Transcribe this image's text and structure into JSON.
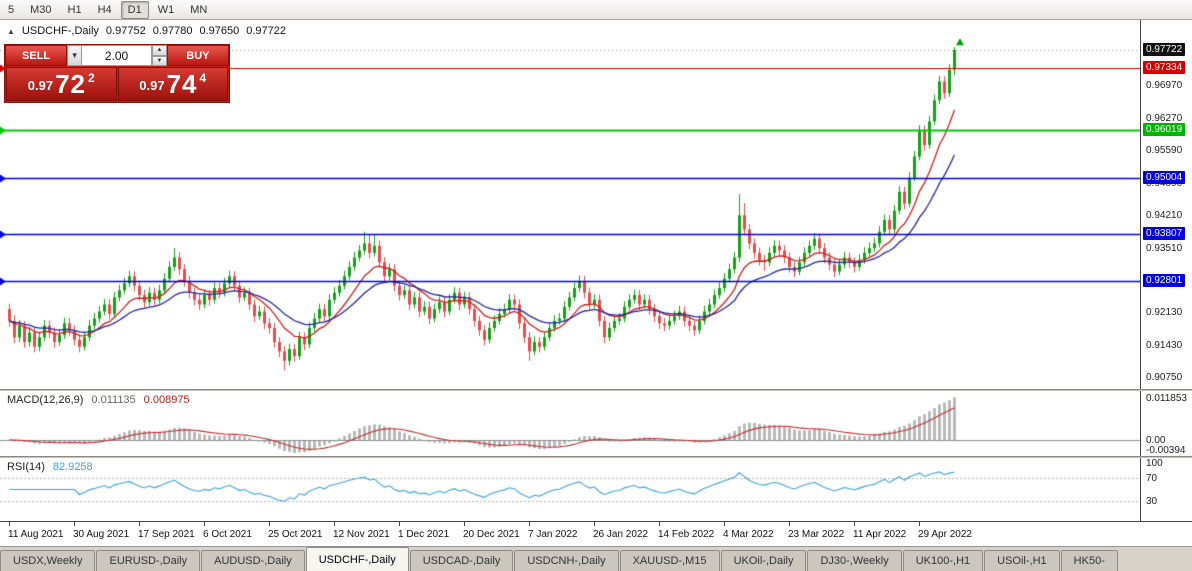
{
  "toolbar": {
    "timeframes": [
      "5",
      "M30",
      "H1",
      "H4",
      "D1",
      "W1",
      "MN"
    ],
    "active_timeframe": "D1"
  },
  "chart_header": {
    "symbol": "USDCHF-,Daily",
    "open": "0.97752",
    "high": "0.97780",
    "low": "0.97650",
    "close": "0.97722"
  },
  "one_click": {
    "sell_label": "SELL",
    "buy_label": "BUY",
    "volume": "2.00",
    "sell_price": {
      "base": "0.97",
      "big": "72",
      "sup": "2"
    },
    "buy_price": {
      "base": "0.97",
      "big": "74",
      "sup": "4"
    }
  },
  "price_scale": {
    "ticks": [
      0.9697,
      0.9627,
      0.9559,
      0.9489,
      0.9421,
      0.9351,
      0.9281,
      0.9213,
      0.9143,
      0.9075
    ],
    "badges": [
      {
        "price": 0.97722,
        "label": "0.97722",
        "bg": "#111111"
      },
      {
        "price": 0.97334,
        "label": "0.97334",
        "bg": "#d40000"
      },
      {
        "price": 0.96019,
        "label": "0.96019",
        "bg": "#00b300"
      },
      {
        "price": 0.95004,
        "label": "0.95004",
        "bg": "#0000dd"
      },
      {
        "price": 0.93807,
        "label": "0.93807",
        "bg": "#0000dd"
      },
      {
        "price": 0.92801,
        "label": "0.92801",
        "bg": "#0000dd"
      }
    ]
  },
  "macd_panel": {
    "label": "MACD(12,26,9)",
    "value_main": "0.011135",
    "value_signal": "0.008975",
    "ylim": [
      -0.00394,
      0.011853
    ],
    "scale_labels": [
      "0.011853",
      "0.00",
      "-0.00394"
    ],
    "histogram_color": "#b9b9b9",
    "signal_color": "#c03030",
    "zero_color": "#8f8f8f"
  },
  "rsi_panel": {
    "label": "RSI(14)",
    "value": "82.9258",
    "color": "#3da2e0",
    "levels": [
      70,
      30
    ],
    "scale_labels": [
      "100",
      "70",
      "30"
    ]
  },
  "tabs": {
    "items": [
      "USDX,Weekly",
      "EURUSD-,Daily",
      "AUDUSD-,Daily",
      "USDCHF-,Daily",
      "USDCAD-,Daily",
      "USDCNH-,Daily",
      "XAUUSD-,M15",
      "UKOil-,Daily",
      "DJ30-,Weekly",
      "UK100-,H1",
      "USOil-,H1",
      "HK50-"
    ],
    "active": "USDCHF-,Daily"
  },
  "chart_data": {
    "type": "candlestick",
    "symbol": "USDCHF-",
    "timeframe": "Daily",
    "ylim": [
      0.905,
      0.9836
    ],
    "bid": 0.97722,
    "up_color": "#15a015",
    "down_color": "#e04f4f",
    "arrow_color": "#00a000",
    "x_label_step": 13,
    "x_labels": [
      "11 Aug 2021",
      "30 Aug 2021",
      "17 Sep 2021",
      "6 Oct 2021",
      "25 Oct 2021",
      "12 Nov 2021",
      "1 Dec 2021",
      "20 Dec 2021",
      "7 Jan 2022",
      "26 Jan 2022",
      "14 Feb 2022",
      "4 Mar 2022",
      "23 Mar 2022",
      "11 Apr 2022",
      "29 Apr 2022"
    ],
    "hlines": [
      {
        "price": 0.97334,
        "color": "#d40000",
        "width": 1.2
      },
      {
        "price": 0.96019,
        "color": "#00c800",
        "width": 2
      },
      {
        "price": 0.95004,
        "color": "#0000e0",
        "width": 1.6
      },
      {
        "price": 0.93807,
        "color": "#0000e0",
        "width": 1.6
      },
      {
        "price": 0.92801,
        "color": "#0000e0",
        "width": 1.6
      }
    ],
    "moving_averages": [
      {
        "type": "ema",
        "period": 10,
        "color": "#cc2020"
      },
      {
        "type": "ema",
        "period": 21,
        "color": "#26269b"
      }
    ],
    "ohlc": [
      [
        0.922,
        0.9232,
        0.9183,
        0.9195
      ],
      [
        0.9195,
        0.9207,
        0.9148,
        0.916
      ],
      [
        0.916,
        0.9197,
        0.915,
        0.9185
      ],
      [
        0.9185,
        0.9195,
        0.9138,
        0.915
      ],
      [
        0.915,
        0.9182,
        0.914,
        0.917
      ],
      [
        0.917,
        0.918,
        0.9128,
        0.914
      ],
      [
        0.914,
        0.9172,
        0.913,
        0.916
      ],
      [
        0.916,
        0.9197,
        0.9152,
        0.9185
      ],
      [
        0.9185,
        0.9196,
        0.9158,
        0.917
      ],
      [
        0.917,
        0.9181,
        0.9138,
        0.915
      ],
      [
        0.915,
        0.9177,
        0.9142,
        0.9165
      ],
      [
        0.9165,
        0.9202,
        0.9157,
        0.919
      ],
      [
        0.919,
        0.9201,
        0.9163,
        0.9175
      ],
      [
        0.9175,
        0.9186,
        0.9143,
        0.9155
      ],
      [
        0.9155,
        0.9166,
        0.9128,
        0.914
      ],
      [
        0.914,
        0.9172,
        0.9132,
        0.916
      ],
      [
        0.916,
        0.9197,
        0.9152,
        0.9185
      ],
      [
        0.9185,
        0.9212,
        0.9177,
        0.92
      ],
      [
        0.92,
        0.9227,
        0.9192,
        0.9215
      ],
      [
        0.9215,
        0.9242,
        0.9207,
        0.923
      ],
      [
        0.923,
        0.9241,
        0.9198,
        0.921
      ],
      [
        0.921,
        0.9257,
        0.9202,
        0.9245
      ],
      [
        0.9245,
        0.9272,
        0.9237,
        0.926
      ],
      [
        0.926,
        0.9287,
        0.9252,
        0.9275
      ],
      [
        0.9275,
        0.9302,
        0.9267,
        0.929
      ],
      [
        0.929,
        0.9301,
        0.9258,
        0.927
      ],
      [
        0.927,
        0.9281,
        0.9238,
        0.925
      ],
      [
        0.925,
        0.9261,
        0.9223,
        0.9235
      ],
      [
        0.9235,
        0.9267,
        0.9227,
        0.9255
      ],
      [
        0.9255,
        0.9266,
        0.9228,
        0.924
      ],
      [
        0.924,
        0.9272,
        0.9232,
        0.926
      ],
      [
        0.926,
        0.9297,
        0.9252,
        0.9285
      ],
      [
        0.9285,
        0.9322,
        0.9277,
        0.931
      ],
      [
        0.931,
        0.935,
        0.9302,
        0.933
      ],
      [
        0.933,
        0.9341,
        0.9293,
        0.9305
      ],
      [
        0.9305,
        0.9316,
        0.9268,
        0.928
      ],
      [
        0.928,
        0.9291,
        0.9243,
        0.9255
      ],
      [
        0.9255,
        0.9266,
        0.9228,
        0.924
      ],
      [
        0.924,
        0.9251,
        0.9218,
        0.923
      ],
      [
        0.923,
        0.9262,
        0.9222,
        0.925
      ],
      [
        0.925,
        0.9261,
        0.9228,
        0.924
      ],
      [
        0.924,
        0.9277,
        0.9232,
        0.9265
      ],
      [
        0.9265,
        0.9276,
        0.9243,
        0.9255
      ],
      [
        0.9255,
        0.9287,
        0.9247,
        0.9275
      ],
      [
        0.9275,
        0.9302,
        0.9267,
        0.929
      ],
      [
        0.929,
        0.9301,
        0.9258,
        0.927
      ],
      [
        0.927,
        0.9281,
        0.9233,
        0.9245
      ],
      [
        0.9245,
        0.9267,
        0.9237,
        0.9255
      ],
      [
        0.9255,
        0.9266,
        0.9218,
        0.923
      ],
      [
        0.923,
        0.9241,
        0.9193,
        0.9205
      ],
      [
        0.9205,
        0.9227,
        0.9197,
        0.9215
      ],
      [
        0.9215,
        0.9226,
        0.9178,
        0.919
      ],
      [
        0.919,
        0.9201,
        0.9168,
        0.918
      ],
      [
        0.918,
        0.9191,
        0.9138,
        0.915
      ],
      [
        0.915,
        0.9161,
        0.9118,
        0.913
      ],
      [
        0.913,
        0.9141,
        0.909,
        0.911
      ],
      [
        0.911,
        0.9147,
        0.91,
        0.9135
      ],
      [
        0.9135,
        0.9146,
        0.9108,
        0.912
      ],
      [
        0.912,
        0.9172,
        0.9112,
        0.916
      ],
      [
        0.916,
        0.9171,
        0.9133,
        0.9145
      ],
      [
        0.9145,
        0.9192,
        0.9137,
        0.918
      ],
      [
        0.918,
        0.9212,
        0.9172,
        0.92
      ],
      [
        0.92,
        0.9232,
        0.9192,
        0.922
      ],
      [
        0.922,
        0.9231,
        0.9193,
        0.9205
      ],
      [
        0.9205,
        0.9252,
        0.9197,
        0.924
      ],
      [
        0.924,
        0.9267,
        0.9232,
        0.9255
      ],
      [
        0.9255,
        0.9282,
        0.9247,
        0.927
      ],
      [
        0.927,
        0.9302,
        0.9262,
        0.929
      ],
      [
        0.929,
        0.9322,
        0.9282,
        0.931
      ],
      [
        0.931,
        0.9342,
        0.9302,
        0.933
      ],
      [
        0.933,
        0.9357,
        0.9322,
        0.9345
      ],
      [
        0.9345,
        0.9385,
        0.9337,
        0.936
      ],
      [
        0.936,
        0.938,
        0.9328,
        0.934
      ],
      [
        0.934,
        0.9378,
        0.9332,
        0.9355
      ],
      [
        0.9355,
        0.9366,
        0.9308,
        0.932
      ],
      [
        0.932,
        0.9331,
        0.9278,
        0.929
      ],
      [
        0.929,
        0.9317,
        0.9282,
        0.9305
      ],
      [
        0.9305,
        0.9316,
        0.9258,
        0.927
      ],
      [
        0.927,
        0.9281,
        0.9238,
        0.925
      ],
      [
        0.925,
        0.9272,
        0.9242,
        0.926
      ],
      [
        0.926,
        0.9271,
        0.9218,
        0.923
      ],
      [
        0.923,
        0.9257,
        0.9222,
        0.9245
      ],
      [
        0.9245,
        0.9256,
        0.9203,
        0.9215
      ],
      [
        0.9215,
        0.9237,
        0.9207,
        0.9225
      ],
      [
        0.9225,
        0.9236,
        0.9188,
        0.92
      ],
      [
        0.92,
        0.9232,
        0.9192,
        0.922
      ],
      [
        0.922,
        0.9247,
        0.9212,
        0.9235
      ],
      [
        0.9235,
        0.9246,
        0.9203,
        0.9215
      ],
      [
        0.9215,
        0.9252,
        0.9207,
        0.924
      ],
      [
        0.924,
        0.9267,
        0.9232,
        0.9255
      ],
      [
        0.9255,
        0.9266,
        0.9218,
        0.923
      ],
      [
        0.923,
        0.9257,
        0.9222,
        0.9245
      ],
      [
        0.9245,
        0.9256,
        0.9208,
        0.922
      ],
      [
        0.922,
        0.9231,
        0.9183,
        0.9195
      ],
      [
        0.9195,
        0.9206,
        0.9163,
        0.9175
      ],
      [
        0.9175,
        0.9186,
        0.9143,
        0.9155
      ],
      [
        0.9155,
        0.9192,
        0.9147,
        0.918
      ],
      [
        0.918,
        0.9207,
        0.9172,
        0.9195
      ],
      [
        0.9195,
        0.9222,
        0.9187,
        0.921
      ],
      [
        0.921,
        0.9232,
        0.9202,
        0.922
      ],
      [
        0.922,
        0.9252,
        0.9212,
        0.924
      ],
      [
        0.924,
        0.9251,
        0.9218,
        0.923
      ],
      [
        0.923,
        0.9241,
        0.9178,
        0.919
      ],
      [
        0.919,
        0.9201,
        0.9148,
        0.916
      ],
      [
        0.916,
        0.9171,
        0.911,
        0.913
      ],
      [
        0.913,
        0.9162,
        0.9122,
        0.915
      ],
      [
        0.915,
        0.9161,
        0.9128,
        0.914
      ],
      [
        0.914,
        0.9172,
        0.9132,
        0.916
      ],
      [
        0.916,
        0.9192,
        0.9152,
        0.918
      ],
      [
        0.918,
        0.9207,
        0.9172,
        0.9195
      ],
      [
        0.9195,
        0.9212,
        0.9187,
        0.92
      ],
      [
        0.92,
        0.9237,
        0.9192,
        0.9225
      ],
      [
        0.9225,
        0.9257,
        0.9217,
        0.9245
      ],
      [
        0.9245,
        0.9277,
        0.9237,
        0.9265
      ],
      [
        0.9265,
        0.9292,
        0.9257,
        0.928
      ],
      [
        0.928,
        0.9291,
        0.9243,
        0.9255
      ],
      [
        0.9255,
        0.9266,
        0.9218,
        0.923
      ],
      [
        0.923,
        0.9252,
        0.9222,
        0.924
      ],
      [
        0.924,
        0.9251,
        0.9183,
        0.9195
      ],
      [
        0.9195,
        0.9206,
        0.9148,
        0.916
      ],
      [
        0.916,
        0.9192,
        0.9152,
        0.918
      ],
      [
        0.918,
        0.9207,
        0.9172,
        0.9195
      ],
      [
        0.9195,
        0.9212,
        0.9187,
        0.92
      ],
      [
        0.92,
        0.9237,
        0.9192,
        0.9225
      ],
      [
        0.9225,
        0.9252,
        0.9217,
        0.924
      ],
      [
        0.924,
        0.9262,
        0.9232,
        0.925
      ],
      [
        0.925,
        0.9261,
        0.9218,
        0.923
      ],
      [
        0.923,
        0.9252,
        0.9222,
        0.924
      ],
      [
        0.924,
        0.9251,
        0.9208,
        0.922
      ],
      [
        0.922,
        0.9231,
        0.9193,
        0.9205
      ],
      [
        0.9205,
        0.9216,
        0.9178,
        0.919
      ],
      [
        0.919,
        0.9201,
        0.9173,
        0.9185
      ],
      [
        0.9185,
        0.9207,
        0.9177,
        0.9195
      ],
      [
        0.9195,
        0.9217,
        0.9187,
        0.9205
      ],
      [
        0.9205,
        0.9227,
        0.9197,
        0.9215
      ],
      [
        0.9215,
        0.9226,
        0.9183,
        0.9195
      ],
      [
        0.9195,
        0.9206,
        0.9173,
        0.9185
      ],
      [
        0.9185,
        0.9196,
        0.9163,
        0.9175
      ],
      [
        0.9175,
        0.9207,
        0.9167,
        0.9195
      ],
      [
        0.9195,
        0.9227,
        0.9187,
        0.9215
      ],
      [
        0.9215,
        0.9242,
        0.9207,
        0.923
      ],
      [
        0.923,
        0.9262,
        0.9222,
        0.925
      ],
      [
        0.925,
        0.9277,
        0.9242,
        0.9265
      ],
      [
        0.9265,
        0.9297,
        0.9257,
        0.9285
      ],
      [
        0.9285,
        0.9317,
        0.9277,
        0.9305
      ],
      [
        0.9305,
        0.9342,
        0.9297,
        0.933
      ],
      [
        0.933,
        0.9465,
        0.932,
        0.942
      ],
      [
        0.942,
        0.9446,
        0.9378,
        0.939
      ],
      [
        0.939,
        0.9401,
        0.9348,
        0.936
      ],
      [
        0.936,
        0.9371,
        0.9328,
        0.934
      ],
      [
        0.934,
        0.9351,
        0.9313,
        0.9325
      ],
      [
        0.9325,
        0.9336,
        0.9302,
        0.932
      ],
      [
        0.932,
        0.9352,
        0.9312,
        0.934
      ],
      [
        0.934,
        0.9367,
        0.9332,
        0.9355
      ],
      [
        0.9355,
        0.9366,
        0.9333,
        0.9345
      ],
      [
        0.9345,
        0.9356,
        0.9318,
        0.933
      ],
      [
        0.933,
        0.9341,
        0.9298,
        0.931
      ],
      [
        0.931,
        0.9321,
        0.9288,
        0.93
      ],
      [
        0.93,
        0.9332,
        0.9292,
        0.932
      ],
      [
        0.932,
        0.9352,
        0.9312,
        0.934
      ],
      [
        0.934,
        0.9367,
        0.9332,
        0.9355
      ],
      [
        0.9355,
        0.9382,
        0.9347,
        0.937
      ],
      [
        0.937,
        0.9381,
        0.9338,
        0.935
      ],
      [
        0.935,
        0.9361,
        0.9318,
        0.933
      ],
      [
        0.933,
        0.9341,
        0.9303,
        0.9315
      ],
      [
        0.9315,
        0.9326,
        0.9288,
        0.93
      ],
      [
        0.93,
        0.9327,
        0.9292,
        0.9315
      ],
      [
        0.9315,
        0.9342,
        0.9307,
        0.933
      ],
      [
        0.933,
        0.9341,
        0.9308,
        0.932
      ],
      [
        0.932,
        0.9331,
        0.9298,
        0.931
      ],
      [
        0.931,
        0.9337,
        0.9302,
        0.9325
      ],
      [
        0.9325,
        0.9352,
        0.9317,
        0.934
      ],
      [
        0.934,
        0.9362,
        0.9332,
        0.935
      ],
      [
        0.935,
        0.9372,
        0.9342,
        0.936
      ],
      [
        0.936,
        0.9397,
        0.9352,
        0.9385
      ],
      [
        0.9385,
        0.9422,
        0.9377,
        0.941
      ],
      [
        0.941,
        0.9421,
        0.9378,
        0.939
      ],
      [
        0.939,
        0.9442,
        0.9382,
        0.943
      ],
      [
        0.943,
        0.9482,
        0.9422,
        0.947
      ],
      [
        0.947,
        0.9481,
        0.9433,
        0.9445
      ],
      [
        0.9445,
        0.9512,
        0.9437,
        0.95
      ],
      [
        0.95,
        0.9557,
        0.9492,
        0.9545
      ],
      [
        0.9545,
        0.9612,
        0.9537,
        0.96
      ],
      [
        0.96,
        0.9611,
        0.9558,
        0.957
      ],
      [
        0.957,
        0.9632,
        0.9562,
        0.962
      ],
      [
        0.962,
        0.9677,
        0.9612,
        0.9665
      ],
      [
        0.9665,
        0.9717,
        0.9657,
        0.9705
      ],
      [
        0.9705,
        0.9716,
        0.9668,
        0.968
      ],
      [
        0.968,
        0.9742,
        0.9672,
        0.973
      ],
      [
        0.973,
        0.9778,
        0.9718,
        0.9772
      ]
    ]
  }
}
